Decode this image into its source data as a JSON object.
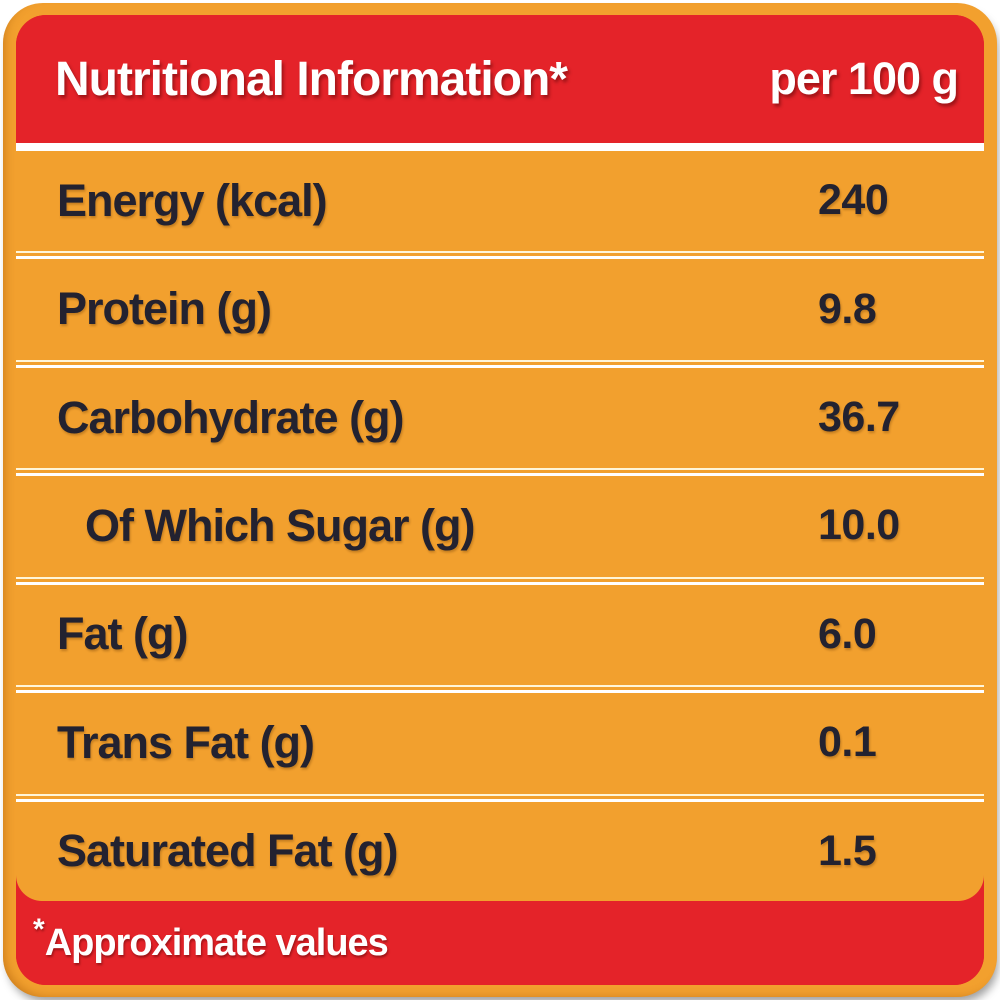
{
  "header": {
    "title": "Nutritional Information*",
    "per_label": "per 100 g"
  },
  "table": {
    "rows": [
      {
        "label": "Energy (kcal)",
        "value": "240",
        "indent": false
      },
      {
        "label": "Protein (g)",
        "value": "9.8",
        "indent": false
      },
      {
        "label": "Carbohydrate (g)",
        "value": "36.7",
        "indent": false
      },
      {
        "label": "Of Which Sugar (g)",
        "value": "10.0",
        "indent": true
      },
      {
        "label": "Fat (g)",
        "value": "6.0",
        "indent": false
      },
      {
        "label": "Trans Fat (g)",
        "value": "0.1",
        "indent": false
      },
      {
        "label": "Saturated Fat (g)",
        "value": "1.5",
        "indent": false
      }
    ]
  },
  "footer": {
    "asterisk": "*",
    "label": "Approximate values"
  },
  "colors": {
    "orange": "#F2A02E",
    "red": "#E42329",
    "text_dark": "#232230",
    "cream_line": "#FFF5D8",
    "white": "#FFFFFF"
  }
}
